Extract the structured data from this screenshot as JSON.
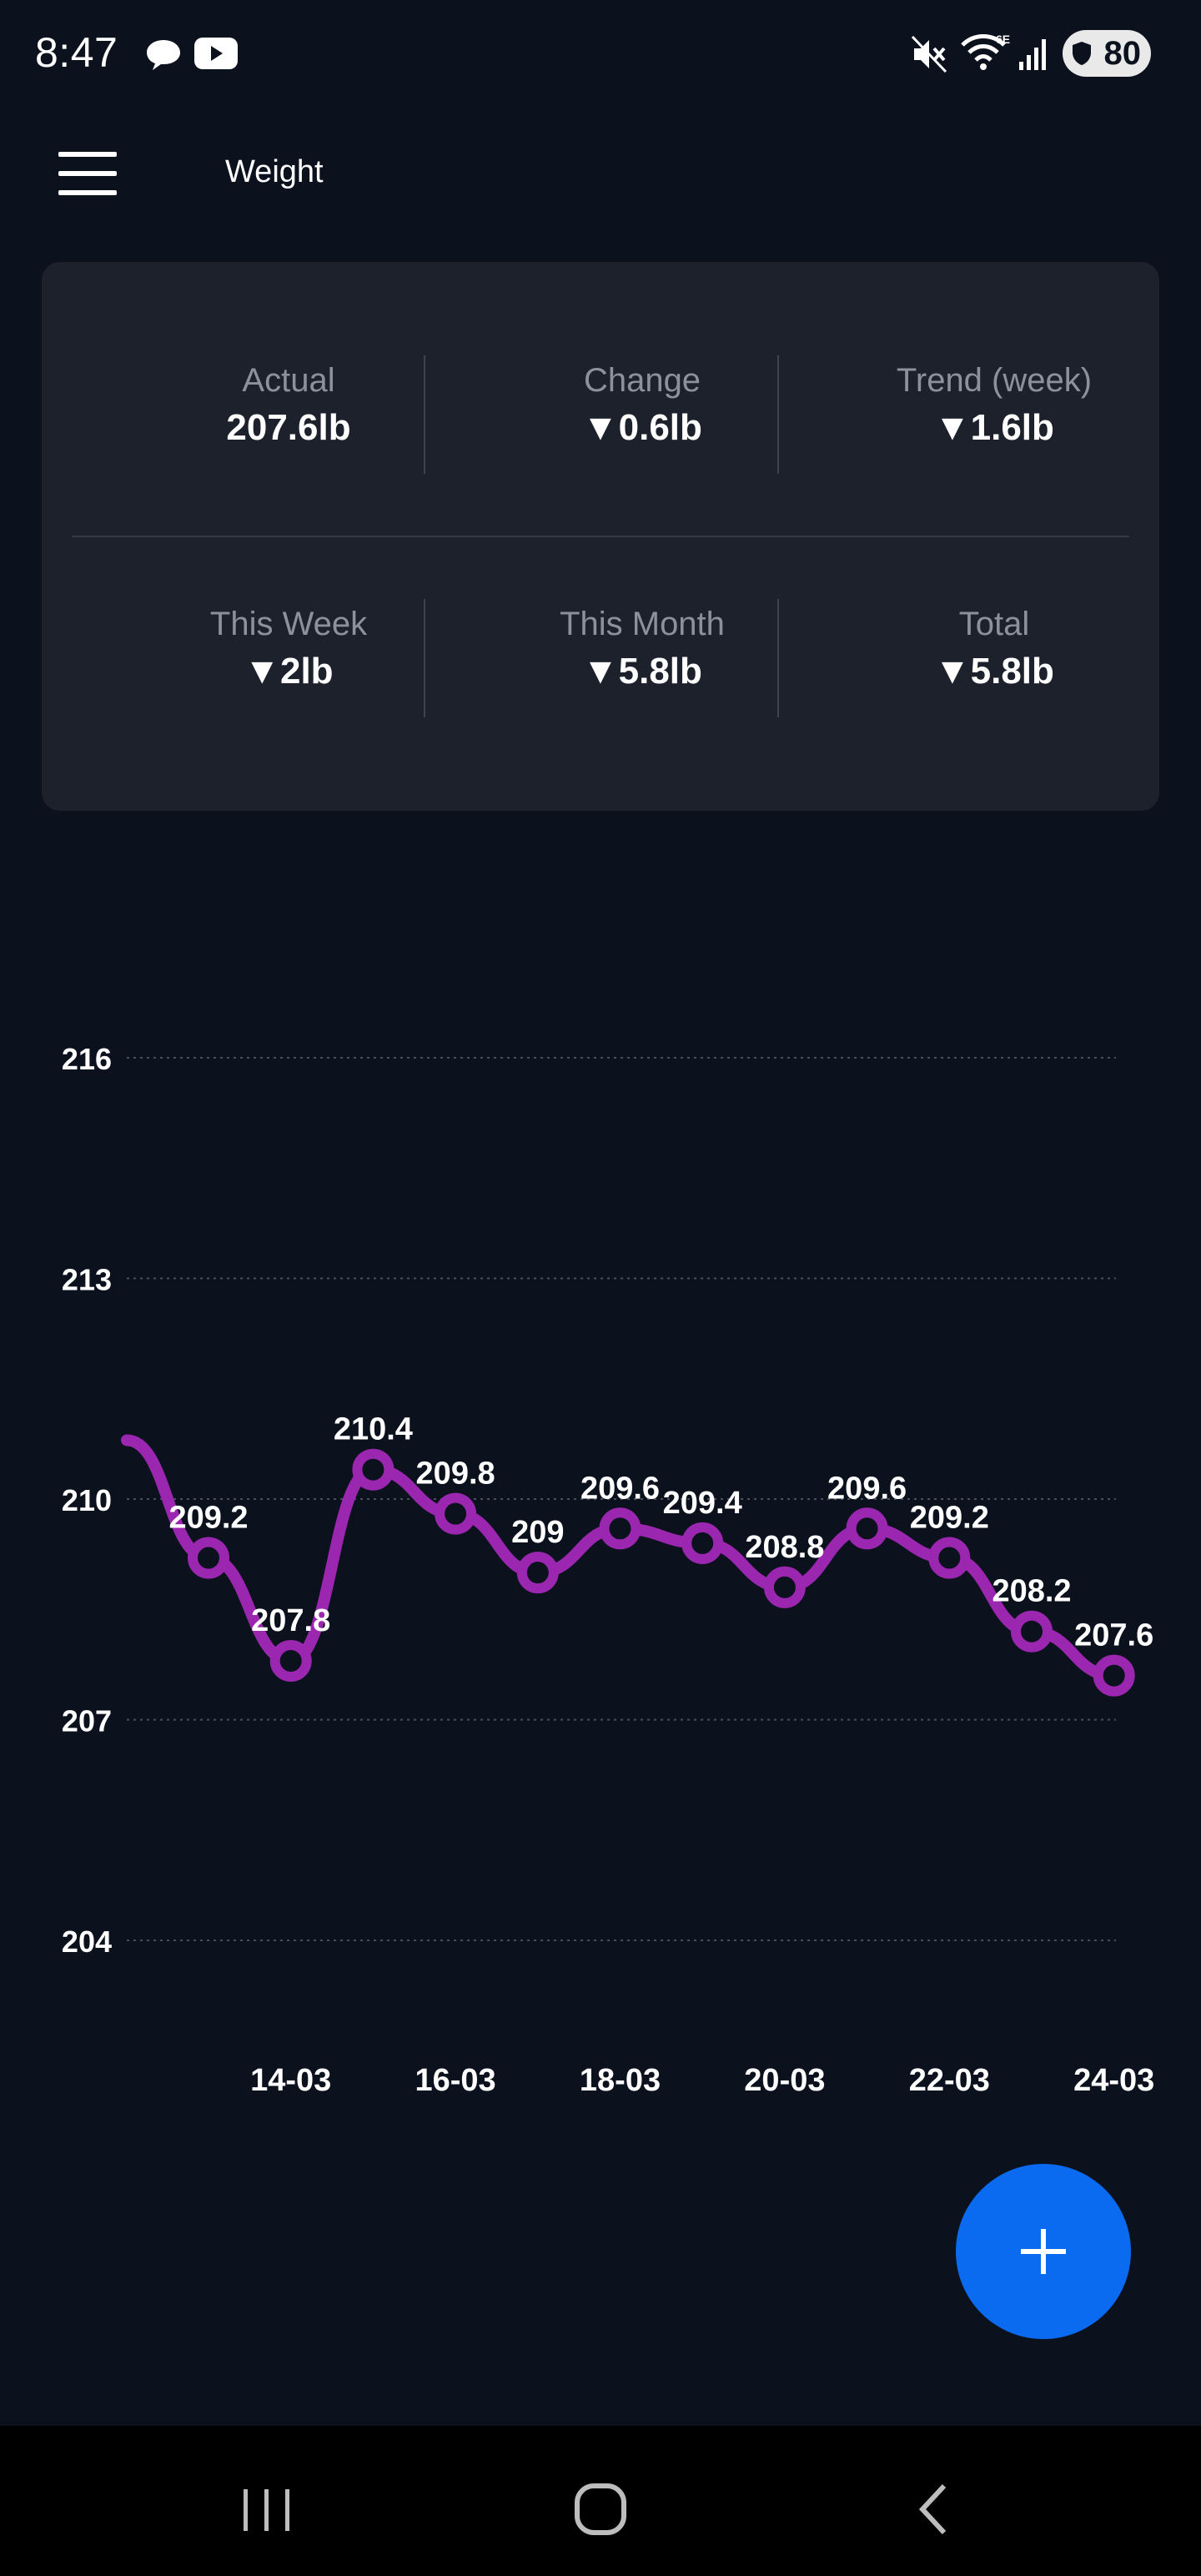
{
  "status_bar": {
    "time": "8:47",
    "network": "6E",
    "battery": "80",
    "icons": [
      "chat-bubble-icon",
      "youtube-icon",
      "mute-icon",
      "wifi-icon",
      "signal-icon",
      "battery-icon"
    ]
  },
  "app_bar": {
    "title": "Weight",
    "menu_icon": "hamburger-menu-icon"
  },
  "stats": [
    {
      "label": "Actual",
      "value": "207.6lb"
    },
    {
      "label": "Change",
      "value": "▼0.6lb"
    },
    {
      "label": "Trend (week)",
      "value": "▼1.6lb"
    },
    {
      "label": "This Week",
      "value": "▼2lb"
    },
    {
      "label": "This Month",
      "value": "▼5.8lb"
    },
    {
      "label": "Total",
      "value": "▼5.8lb"
    }
  ],
  "chart_data": {
    "type": "line",
    "ylim": [
      204,
      216
    ],
    "yticks": [
      "216",
      "213",
      "210",
      "207",
      "204"
    ],
    "xticks": [
      "14-03",
      "16-03",
      "18-03",
      "20-03",
      "22-03",
      "24-03"
    ],
    "grid": true,
    "line_color": "#9b27b0",
    "series": [
      {
        "x": [
          "13-03",
          "14-03",
          "15-03",
          "16-03",
          "17-03",
          "18-03",
          "19-03",
          "20-03",
          "21-03",
          "22-03",
          "23-03",
          "24-03"
        ],
        "values": [
          209.2,
          207.8,
          210.4,
          209.8,
          209,
          209.6,
          209.4,
          208.8,
          209.6,
          209.2,
          208.2,
          207.6
        ],
        "labels": [
          "209.2",
          "207.8",
          "210.4",
          "209.8",
          "209",
          "209.6",
          "209.4",
          "208.8",
          "209.6",
          "209.2",
          "208.2",
          "207.6"
        ]
      }
    ],
    "lead_in_value": 210.8
  },
  "fab": {
    "icon": "plus-icon"
  },
  "nav_bar": {
    "icons": [
      "recent-apps-icon",
      "home-icon",
      "back-icon"
    ]
  },
  "colors": {
    "background": "#0b111d",
    "card": "#1d212c",
    "accent": "#0a6af0",
    "series": "#9b27b0"
  }
}
